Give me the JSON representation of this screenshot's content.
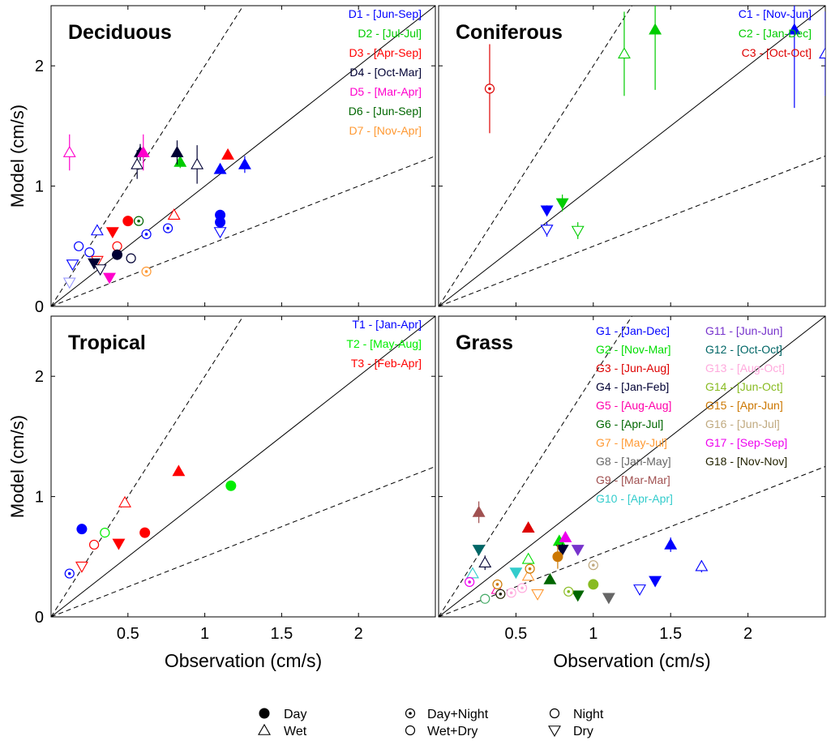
{
  "chart_data": [
    {
      "type": "scatter",
      "title": "Deciduous",
      "xlabel": "",
      "ylabel": "Model (cm/s)",
      "xlim": [
        0,
        2.5
      ],
      "ylim": [
        0,
        2.5
      ],
      "x_tick_labels": [],
      "y_ticks": [
        0,
        1,
        2
      ],
      "y_tick_labels": [
        "0",
        "1",
        "2"
      ],
      "reference_lines": {
        "one_to_one": 1,
        "dashed_slopes": [
          2,
          0.5
        ]
      },
      "legend_position": "top-right",
      "series": [
        {
          "name": "D1 - [Jun-Sep]",
          "color": "#0000ff",
          "points": [
            {
              "x": 0.14,
              "y": 0.35,
              "marker": "dry",
              "error": 0.03
            },
            {
              "x": 0.18,
              "y": 0.5,
              "marker": "night",
              "error": 0.03
            },
            {
              "x": 0.25,
              "y": 0.45,
              "marker": "night",
              "error": 0.03
            },
            {
              "x": 0.3,
              "y": 0.63,
              "marker": "wet",
              "error": 0.03
            },
            {
              "x": 0.62,
              "y": 0.6,
              "marker": "day_night",
              "error": 0.02
            },
            {
              "x": 0.76,
              "y": 0.65,
              "marker": "day_night",
              "error": 0.02
            },
            {
              "x": 1.1,
              "y": 0.76,
              "marker": "day",
              "error": 0.02
            },
            {
              "x": 1.1,
              "y": 0.7,
              "marker": "day",
              "error": 0.02
            },
            {
              "x": 1.1,
              "y": 0.62,
              "marker": "dry",
              "error": 0.02
            },
            {
              "x": 1.1,
              "y": 1.14,
              "marker": "wet_filled",
              "error": 0.04
            },
            {
              "x": 1.26,
              "y": 1.18,
              "marker": "wet_filled",
              "error": 0.07
            }
          ]
        },
        {
          "name": "D2 - [Jul-Jul]",
          "color": "#00cc00",
          "points": [
            {
              "x": 0.84,
              "y": 1.2,
              "marker": "wet_filled",
              "error": 0.05
            }
          ]
        },
        {
          "name": "D3 - [Apr-Sep]",
          "color": "#ff0000",
          "points": [
            {
              "x": 0.3,
              "y": 0.38,
              "marker": "dry",
              "error": 0.02
            },
            {
              "x": 0.4,
              "y": 0.62,
              "marker": "dry_filled",
              "error": 0.02
            },
            {
              "x": 0.43,
              "y": 0.5,
              "marker": "night",
              "error": 0.02
            },
            {
              "x": 0.5,
              "y": 0.71,
              "marker": "day",
              "error": 0.02
            },
            {
              "x": 0.8,
              "y": 0.76,
              "marker": "wet",
              "error": 0.02
            },
            {
              "x": 1.15,
              "y": 1.26,
              "marker": "wet_filled",
              "error": 0.02
            }
          ]
        },
        {
          "name": "D4 - [Oct-Mar]",
          "color": "#000033",
          "points": [
            {
              "x": 0.28,
              "y": 0.36,
              "marker": "dry_filled",
              "error": 0.02
            },
            {
              "x": 0.32,
              "y": 0.31,
              "marker": "dry",
              "error": 0.03
            },
            {
              "x": 0.43,
              "y": 0.43,
              "marker": "day",
              "error": 0.02
            },
            {
              "x": 0.52,
              "y": 0.4,
              "marker": "night",
              "error": 0.02
            },
            {
              "x": 0.56,
              "y": 1.18,
              "marker": "wet",
              "error": 0.12
            },
            {
              "x": 0.58,
              "y": 1.28,
              "marker": "wet_filled",
              "error": 0.07
            },
            {
              "x": 0.82,
              "y": 1.28,
              "marker": "wet_filled",
              "error": 0.1
            },
            {
              "x": 0.95,
              "y": 1.18,
              "marker": "wet",
              "error": 0.16
            }
          ]
        },
        {
          "name": "D5 - [Mar-Apr]",
          "color": "#ff00cc",
          "points": [
            {
              "x": 0.12,
              "y": 1.28,
              "marker": "wet",
              "error": 0.15
            },
            {
              "x": 0.38,
              "y": 0.24,
              "marker": "dry_filled",
              "error": 0.02
            },
            {
              "x": 0.6,
              "y": 1.28,
              "marker": "wet_filled",
              "error": 0.15
            }
          ]
        },
        {
          "name": "D6 - [Jun-Sep]",
          "color": "#006600",
          "points": [
            {
              "x": 0.57,
              "y": 0.71,
              "marker": "day_night",
              "error": 0.03
            }
          ]
        },
        {
          "name": "D7 - [Nov-Apr]",
          "color": "#ff9933",
          "points": [
            {
              "x": 0.62,
              "y": 0.29,
              "marker": "day_night",
              "error": 0.02
            }
          ]
        },
        {
          "name": "",
          "color": "#9999ff",
          "points": [
            {
              "x": 0.12,
              "y": 0.2,
              "marker": "dry",
              "error": 0.02
            }
          ]
        }
      ]
    },
    {
      "type": "scatter",
      "title": "Coniferous",
      "xlabel": "",
      "ylabel": "",
      "xlim": [
        0,
        2.5
      ],
      "ylim": [
        0,
        2.5
      ],
      "x_tick_labels": [],
      "y_tick_labels": [],
      "reference_lines": {
        "one_to_one": 1,
        "dashed_slopes": [
          2,
          0.5
        ]
      },
      "legend_position": "top-right",
      "series": [
        {
          "name": "C1 - [Nov-Jun]",
          "color": "#0000ff",
          "points": [
            {
              "x": 0.7,
              "y": 0.8,
              "marker": "dry_filled",
              "error": 0.04
            },
            {
              "x": 0.7,
              "y": 0.64,
              "marker": "dry",
              "error": 0.06
            },
            {
              "x": 2.3,
              "y": 2.3,
              "marker": "wet_filled",
              "error": 0.65
            },
            {
              "x": 2.5,
              "y": 2.1,
              "marker": "wet",
              "error": 0.35
            }
          ]
        },
        {
          "name": "C2 - [Jan-Dec]",
          "color": "#00cc00",
          "points": [
            {
              "x": 0.8,
              "y": 0.86,
              "marker": "dry_filled",
              "error": 0.07
            },
            {
              "x": 0.9,
              "y": 0.63,
              "marker": "dry",
              "error": 0.07
            },
            {
              "x": 1.2,
              "y": 2.1,
              "marker": "wet",
              "error": 0.35
            },
            {
              "x": 1.4,
              "y": 2.3,
              "marker": "wet_filled",
              "error": 0.5
            }
          ]
        },
        {
          "name": "C3 - [Oct-Oct]",
          "color": "#dd0000",
          "points": [
            {
              "x": 0.33,
              "y": 1.81,
              "marker": "day_night",
              "error": 0.37
            }
          ]
        }
      ]
    },
    {
      "type": "scatter",
      "title": "Tropical",
      "xlabel": "Observation (cm/s)",
      "ylabel": "Model (cm/s)",
      "xlim": [
        0,
        2.5
      ],
      "ylim": [
        0,
        2.5
      ],
      "x_ticks": [
        0.5,
        1,
        1.5,
        2
      ],
      "x_tick_labels": [
        "0.5",
        "1",
        "1.5",
        "2"
      ],
      "y_ticks": [
        0,
        1,
        2
      ],
      "y_tick_labels": [
        "0",
        "1",
        "2"
      ],
      "reference_lines": {
        "one_to_one": 1,
        "dashed_slopes": [
          2,
          0.5
        ]
      },
      "legend_position": "top-right",
      "series": [
        {
          "name": "T1 - [Jan-Apr]",
          "color": "#0000ff",
          "points": [
            {
              "x": 0.12,
              "y": 0.36,
              "marker": "day_night",
              "error": 0.02
            },
            {
              "x": 0.2,
              "y": 0.73,
              "marker": "day",
              "error": 0.02
            }
          ]
        },
        {
          "name": "T2 - [May-Aug]",
          "color": "#00ee00",
          "points": [
            {
              "x": 0.35,
              "y": 0.7,
              "marker": "wet_dry",
              "error": 0.02
            },
            {
              "x": 1.17,
              "y": 1.09,
              "marker": "day",
              "error": 0.02
            }
          ]
        },
        {
          "name": "T3 - [Feb-Apr]",
          "color": "#ff0000",
          "points": [
            {
              "x": 0.2,
              "y": 0.42,
              "marker": "dry",
              "error": 0.02
            },
            {
              "x": 0.28,
              "y": 0.6,
              "marker": "night",
              "error": 0.02
            },
            {
              "x": 0.44,
              "y": 0.61,
              "marker": "dry_filled",
              "error": 0.02
            },
            {
              "x": 0.48,
              "y": 0.95,
              "marker": "wet",
              "error": 0.03
            },
            {
              "x": 0.61,
              "y": 0.7,
              "marker": "day",
              "error": 0.02
            },
            {
              "x": 0.83,
              "y": 1.21,
              "marker": "wet_filled",
              "error": 0.02
            }
          ]
        }
      ]
    },
    {
      "type": "scatter",
      "title": "Grass",
      "xlabel": "Observation (cm/s)",
      "ylabel": "",
      "xlim": [
        0,
        2.5
      ],
      "ylim": [
        0,
        2.5
      ],
      "x_ticks": [
        0.5,
        1,
        1.5,
        2
      ],
      "x_tick_labels": [
        "0.5",
        "1",
        "1.5",
        "2"
      ],
      "y_tick_labels": [],
      "reference_lines": {
        "one_to_one": 1,
        "dashed_slopes": [
          2,
          0.5
        ]
      },
      "legend_position": "top-right",
      "series": [
        {
          "name": "G1 - [Jan-Dec]",
          "color": "#0000ff",
          "points": [
            {
              "x": 1.3,
              "y": 0.23,
              "marker": "dry",
              "error": 0.02
            },
            {
              "x": 1.4,
              "y": 0.3,
              "marker": "dry_filled",
              "error": 0.02
            },
            {
              "x": 1.5,
              "y": 0.6,
              "marker": "wet_filled",
              "error": 0.06
            },
            {
              "x": 1.7,
              "y": 0.42,
              "marker": "wet",
              "error": 0.05
            }
          ]
        },
        {
          "name": "G2 - [Nov-Mar]",
          "color": "#00dd00",
          "points": [
            {
              "x": 0.58,
              "y": 0.48,
              "marker": "wet",
              "error": 0.03
            },
            {
              "x": 0.78,
              "y": 0.63,
              "marker": "wet_filled",
              "error": 0.04
            }
          ]
        },
        {
          "name": "G3 - [Jun-Aug]",
          "color": "#dd0000",
          "points": [
            {
              "x": 0.58,
              "y": 0.74,
              "marker": "wet_filled",
              "error": 0.03
            }
          ]
        },
        {
          "name": "G4 - [Jan-Feb]",
          "color": "#000033",
          "points": [
            {
              "x": 0.3,
              "y": 0.45,
              "marker": "wet",
              "error": 0.06
            },
            {
              "x": 0.8,
              "y": 0.56,
              "marker": "dry_filled",
              "error": 0.05
            }
          ]
        },
        {
          "name": "G5 - [Aug-Aug]",
          "color": "#ff00aa",
          "points": [
            {
              "x": 0.38,
              "y": 0.23,
              "marker": "wet",
              "error": 0.02
            }
          ]
        },
        {
          "name": "G6 - [Apr-Jul]",
          "color": "#006600",
          "points": [
            {
              "x": 0.72,
              "y": 0.31,
              "marker": "wet_filled",
              "error": 0.02
            },
            {
              "x": 0.9,
              "y": 0.18,
              "marker": "dry_filled",
              "error": 0.02
            }
          ]
        },
        {
          "name": "G7 - [May-Jul]",
          "color": "#ff9933",
          "points": [
            {
              "x": 0.58,
              "y": 0.34,
              "marker": "wet",
              "error": 0.02
            },
            {
              "x": 0.64,
              "y": 0.19,
              "marker": "dry",
              "error": 0.02
            }
          ]
        },
        {
          "name": "G8 - [Jan-May]",
          "color": "#666666",
          "points": [
            {
              "x": 1.1,
              "y": 0.16,
              "marker": "dry_filled",
              "error": 0.02
            }
          ]
        },
        {
          "name": "G9 - [Mar-Mar]",
          "color": "#a05050",
          "points": [
            {
              "x": 0.26,
              "y": 0.87,
              "marker": "wet_filled",
              "error": 0.09
            }
          ]
        },
        {
          "name": "G10 - [Apr-Apr]",
          "color": "#33cccc",
          "points": [
            {
              "x": 0.22,
              "y": 0.36,
              "marker": "wet",
              "error": 0.02
            },
            {
              "x": 0.5,
              "y": 0.37,
              "marker": "dry_filled",
              "error": 0.02
            }
          ]
        },
        {
          "name": "G11 - [Jun-Jun]",
          "color": "#7733cc",
          "points": [
            {
              "x": 0.9,
              "y": 0.56,
              "marker": "dry_filled",
              "error": 0.03
            }
          ]
        },
        {
          "name": "G12 - [Oct-Oct]",
          "color": "#006666",
          "points": [
            {
              "x": 0.26,
              "y": 0.56,
              "marker": "dry_filled",
              "error": 0.03
            }
          ]
        },
        {
          "name": "G13 - [Aug-Oct]",
          "color": "#ffaadd",
          "points": [
            {
              "x": 0.47,
              "y": 0.2,
              "marker": "day_night",
              "error": 0.02
            },
            {
              "x": 0.54,
              "y": 0.24,
              "marker": "day_night",
              "error": 0.02
            }
          ]
        },
        {
          "name": "G14 - [Jun-Oct]",
          "color": "#88bb22",
          "points": [
            {
              "x": 0.84,
              "y": 0.21,
              "marker": "day_night",
              "error": 0.02
            },
            {
              "x": 1.0,
              "y": 0.27,
              "marker": "day",
              "error": 0.02
            }
          ]
        },
        {
          "name": "G15 - [Apr-Jun]",
          "color": "#cc7700",
          "points": [
            {
              "x": 0.38,
              "y": 0.27,
              "marker": "day_night",
              "error": 0.02
            },
            {
              "x": 0.59,
              "y": 0.4,
              "marker": "day_night",
              "error": 0.02
            },
            {
              "x": 0.77,
              "y": 0.5,
              "marker": "day",
              "error": 0.1
            }
          ]
        },
        {
          "name": "G16 - [Jun-Jul]",
          "color": "#c0aa80",
          "points": [
            {
              "x": 1.0,
              "y": 0.43,
              "marker": "day_night",
              "error": 0.02
            }
          ]
        },
        {
          "name": "G17 - [Sep-Sep]",
          "color": "#ee00ee",
          "points": [
            {
              "x": 0.2,
              "y": 0.29,
              "marker": "day_night",
              "error": 0.02
            },
            {
              "x": 0.82,
              "y": 0.66,
              "marker": "wet_filled",
              "error": 0.04
            }
          ]
        },
        {
          "name": "G18 - [Nov-Nov]",
          "color": "#222200",
          "points": [
            {
              "x": 0.4,
              "y": 0.19,
              "marker": "day_night",
              "error": 0.02
            }
          ]
        },
        {
          "name": "",
          "color": "#44aa66",
          "points": [
            {
              "x": 0.3,
              "y": 0.15,
              "marker": "night",
              "error": 0.02
            }
          ]
        }
      ]
    }
  ],
  "marker_legend": [
    {
      "label": "Day",
      "marker": "day"
    },
    {
      "label": "Wet",
      "marker": "wet"
    },
    {
      "label": "Day+Night",
      "marker": "day_night"
    },
    {
      "label": "Wet+Dry",
      "marker": "wet_dry"
    },
    {
      "label": "Night",
      "marker": "night"
    },
    {
      "label": "Dry",
      "marker": "dry"
    }
  ]
}
